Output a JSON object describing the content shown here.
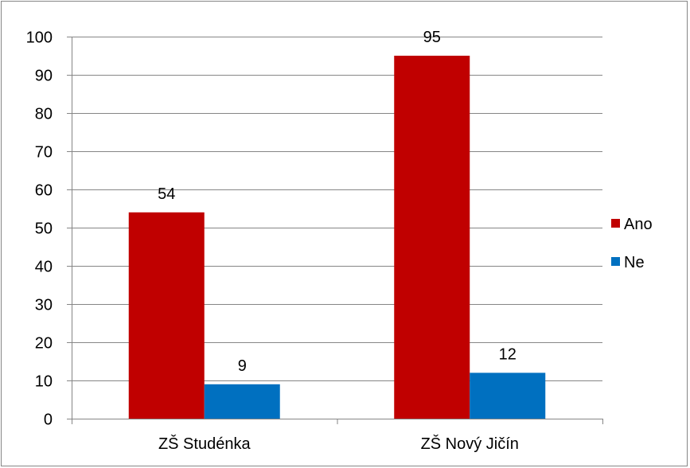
{
  "chart_data": {
    "type": "bar",
    "categories": [
      "ZŠ Studénka",
      "ZŠ Nový Jičín"
    ],
    "series": [
      {
        "name": "Ano",
        "values": [
          54,
          95
        ],
        "color": "#c00000"
      },
      {
        "name": "Ne",
        "values": [
          9,
          12
        ],
        "color": "#0070c0"
      }
    ],
    "ylim": [
      0,
      100
    ],
    "ytick_step": 10,
    "yticks": [
      "0",
      "10",
      "20",
      "30",
      "40",
      "50",
      "60",
      "70",
      "80",
      "90",
      "100"
    ],
    "grid": true,
    "gridline_color": "#868686",
    "legend_position": "right",
    "title": "",
    "xlabel": "",
    "ylabel": ""
  }
}
